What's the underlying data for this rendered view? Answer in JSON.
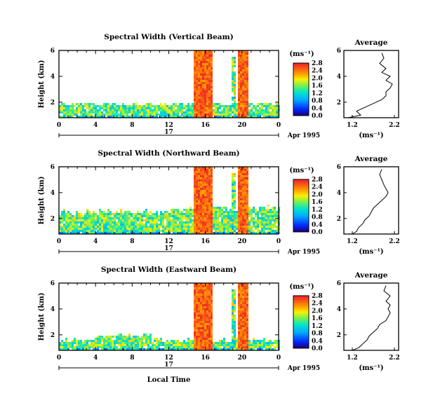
{
  "chart_data": [
    {
      "type": "heatmap",
      "title": "Spectral Width (Vertical Beam)",
      "ylabel": "Height (km)",
      "x_ticks": [
        "0",
        "4",
        "8",
        "12",
        "16",
        "20",
        "0"
      ],
      "y_ticks": [
        "2",
        "4",
        "6"
      ],
      "xlim": [
        0,
        24
      ],
      "ylim": [
        0.8,
        6.0
      ],
      "date_day": "17",
      "date_label": "Apr 1995",
      "colorbar": {
        "unit": "(ms⁻¹)",
        "ticks": [
          "0.0",
          "0.4",
          "0.8",
          "1.2",
          "1.6",
          "2.0",
          "2.4",
          "2.8"
        ],
        "range": [
          0,
          2.8
        ]
      },
      "average_profile": {
        "title": "Average",
        "xlabel": "(ms⁻¹)",
        "x_ticks": [
          "1.2",
          "2.2"
        ],
        "y_ticks": [
          "2",
          "4",
          "6"
        ],
        "xlim": [
          1.0,
          2.3
        ],
        "height_km": [
          0.8,
          1.0,
          1.3,
          1.6,
          1.9,
          2.2,
          2.5,
          2.8,
          3.1,
          3.4,
          3.7,
          4.0,
          4.3,
          4.6,
          5.0,
          5.4,
          5.8
        ],
        "width": [
          1.1,
          1.4,
          1.3,
          1.5,
          1.7,
          1.9,
          2.0,
          2.0,
          2.1,
          2.15,
          2.0,
          2.1,
          1.9,
          2.0,
          1.85,
          1.95,
          1.9
        ]
      }
    },
    {
      "type": "heatmap",
      "title": "Spectral Width (Northward Beam)",
      "ylabel": "Height (km)",
      "x_ticks": [
        "0",
        "4",
        "8",
        "12",
        "16",
        "20",
        "0"
      ],
      "y_ticks": [
        "2",
        "4",
        "6"
      ],
      "xlim": [
        0,
        24
      ],
      "ylim": [
        0.8,
        6.0
      ],
      "date_day": "17",
      "date_label": "Apr 1995",
      "colorbar": {
        "unit": "(ms⁻¹)",
        "ticks": [
          "0.0",
          "0.4",
          "0.8",
          "1.2",
          "1.6",
          "2.0",
          "2.4",
          "2.8"
        ],
        "range": [
          0,
          2.8
        ]
      },
      "average_profile": {
        "title": "Average",
        "xlabel": "(ms⁻¹)",
        "x_ticks": [
          "1.2",
          "2.2"
        ],
        "y_ticks": [
          "2",
          "4",
          "6"
        ],
        "xlim": [
          1.0,
          2.3
        ],
        "height_km": [
          0.8,
          1.0,
          1.3,
          1.6,
          1.9,
          2.2,
          2.5,
          2.8,
          3.1,
          3.4,
          3.7,
          4.0,
          4.3,
          4.6,
          5.0,
          5.4,
          5.8
        ],
        "width": [
          1.2,
          1.3,
          1.35,
          1.45,
          1.5,
          1.6,
          1.65,
          1.7,
          1.8,
          1.9,
          2.0,
          2.05,
          2.0,
          1.95,
          1.9,
          1.85,
          1.9
        ]
      }
    },
    {
      "type": "heatmap",
      "title": "Spectral Width (Eastward Beam)",
      "ylabel": "Height (km)",
      "x_ticks": [
        "0",
        "4",
        "8",
        "12",
        "16",
        "20",
        "0"
      ],
      "y_ticks": [
        "2",
        "4",
        "6"
      ],
      "xlim": [
        0,
        24
      ],
      "ylim": [
        0.8,
        6.0
      ],
      "date_day": "17",
      "date_label": "Apr 1995",
      "xlabel": "Local Time",
      "colorbar": {
        "unit": "(ms⁻¹)",
        "ticks": [
          "0.0",
          "0.4",
          "0.8",
          "1.2",
          "1.6",
          "2.0",
          "2.4",
          "2.8"
        ],
        "range": [
          0,
          2.8
        ]
      },
      "average_profile": {
        "title": "Average",
        "xlabel": "(ms⁻¹)",
        "x_ticks": [
          "1.2",
          "2.2"
        ],
        "y_ticks": [
          "2",
          "4",
          "6"
        ],
        "xlim": [
          1.0,
          2.3
        ],
        "height_km": [
          0.8,
          1.0,
          1.3,
          1.6,
          1.9,
          2.2,
          2.5,
          2.8,
          3.1,
          3.4,
          3.7,
          4.0,
          4.3,
          4.6,
          5.0,
          5.4,
          5.8
        ],
        "width": [
          1.2,
          1.35,
          1.45,
          1.55,
          1.6,
          1.7,
          1.8,
          1.85,
          2.0,
          2.05,
          2.1,
          2.05,
          2.1,
          2.0,
          2.1,
          1.95,
          2.0
        ]
      }
    }
  ]
}
